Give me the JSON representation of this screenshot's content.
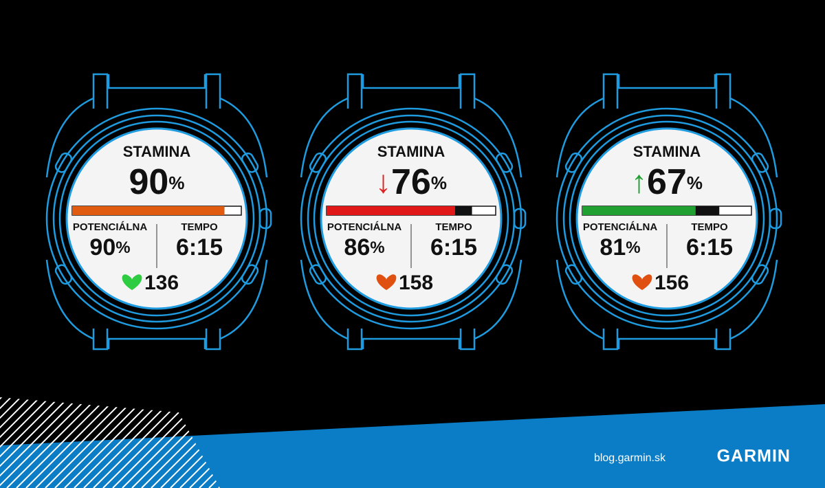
{
  "watches": [
    {
      "title": "STAMINA",
      "stamina": 90,
      "stamina_unit": "%",
      "bar_color": "#e05a10",
      "potential_label": "POTENCIÁLNA",
      "potential": 90,
      "potential_unit": "%",
      "tempo_label": "TEMPO",
      "tempo": "6:15",
      "heart_rate": 136,
      "heart_color": "#2ecc40"
    },
    {
      "title": "STAMINA",
      "arrow": "↓",
      "arrow_color": "#e02020",
      "stamina": 76,
      "stamina_unit": "%",
      "bar_color": "#e01818",
      "potential_label": "POTENCIÁLNA",
      "potential": 86,
      "potential_unit": "%",
      "tempo_label": "TEMPO",
      "tempo": "6:15",
      "heart_rate": 158,
      "heart_color": "#e05010"
    },
    {
      "title": "STAMINA",
      "arrow": "↑",
      "arrow_color": "#20a030",
      "stamina": 67,
      "stamina_unit": "%",
      "bar_color": "#20a030",
      "potential_label": "POTENCIÁLNA",
      "potential": 81,
      "potential_unit": "%",
      "tempo_label": "TEMPO",
      "tempo": "6:15",
      "heart_rate": 156,
      "heart_color": "#e05010"
    }
  ],
  "footer": {
    "url": "blog.garmin.sk",
    "brand": "GARMIN"
  }
}
